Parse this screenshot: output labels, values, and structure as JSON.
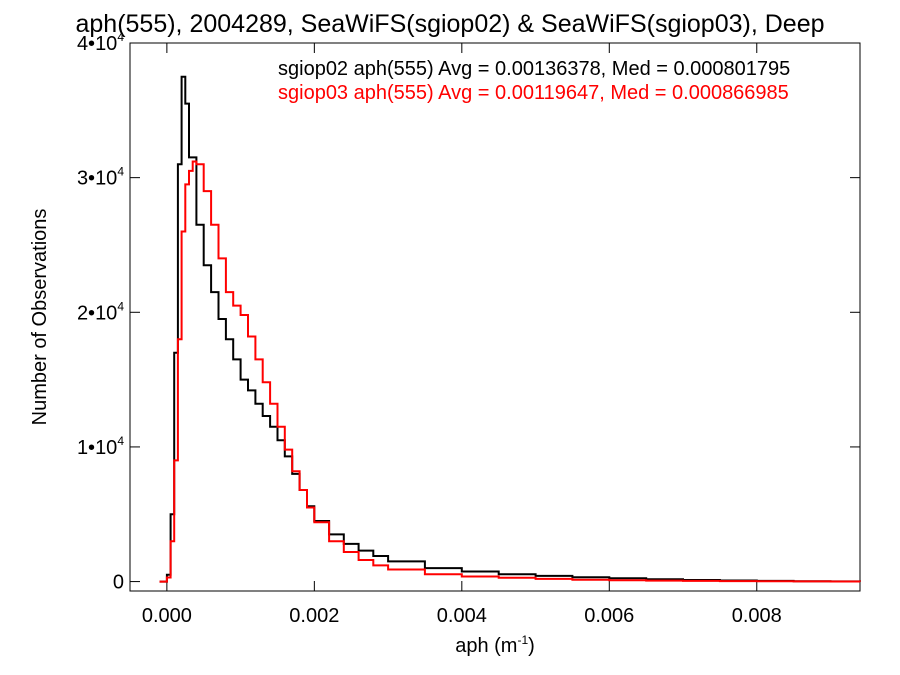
{
  "chart_data": {
    "type": "line",
    "title": "aph(555), 2004289, SeaWiFS(sgiop02) & SeaWiFS(sgiop03), Deep",
    "xlabel": "aph (m",
    "xlabel_sup": "-1",
    "xlabel_end": ")",
    "ylabel": "Number of Observations",
    "xlim": [
      -0.0005,
      0.0094
    ],
    "ylim": [
      -700,
      40000
    ],
    "xticks": [
      {
        "value": 0.0,
        "label": "0.000"
      },
      {
        "value": 0.002,
        "label": "0.002"
      },
      {
        "value": 0.004,
        "label": "0.004"
      },
      {
        "value": 0.006,
        "label": "0.006"
      },
      {
        "value": 0.008,
        "label": "0.008"
      }
    ],
    "yticks": [
      {
        "value": 0,
        "base": "0",
        "exp": ""
      },
      {
        "value": 10000,
        "base": "1•10",
        "exp": "4"
      },
      {
        "value": 20000,
        "base": "2•10",
        "exp": "4"
      },
      {
        "value": 30000,
        "base": "3•10",
        "exp": "4"
      },
      {
        "value": 40000,
        "base": "4•10",
        "exp": "4"
      }
    ],
    "grid": false,
    "legend_placement": "top-right",
    "series": [
      {
        "name": "sgiop02",
        "color": "#000000",
        "legend": "sgiop02 aph(555) Avg = 0.00136378, Med = 0.000801795",
        "x": [
          -0.0001,
          0.0,
          5e-05,
          0.0001,
          0.00015,
          0.0002,
          0.00025,
          0.0003,
          0.0004,
          0.0005,
          0.0006,
          0.0007,
          0.0008,
          0.0009,
          0.001,
          0.0011,
          0.0012,
          0.0013,
          0.0014,
          0.0015,
          0.0016,
          0.0017,
          0.0018,
          0.0019,
          0.002,
          0.0022,
          0.0024,
          0.0026,
          0.0028,
          0.003,
          0.0035,
          0.004,
          0.0045,
          0.005,
          0.0055,
          0.006,
          0.0065,
          0.007,
          0.0075,
          0.008,
          0.0085,
          0.009,
          0.0094
        ],
        "y": [
          0,
          500,
          5000,
          17000,
          31000,
          37500,
          35500,
          31500,
          26500,
          23500,
          21500,
          19500,
          18000,
          16500,
          15000,
          14200,
          13200,
          12300,
          11500,
          10500,
          9300,
          8000,
          6800,
          5600,
          4500,
          3500,
          2800,
          2300,
          1900,
          1500,
          1000,
          750,
          550,
          420,
          320,
          240,
          170,
          120,
          80,
          50,
          30,
          15,
          0
        ]
      },
      {
        "name": "sgiop03",
        "color": "#ff0000",
        "legend": "sgiop03 aph(555) Avg = 0.00119647, Med = 0.000866985",
        "x": [
          -0.0001,
          0.0,
          5e-05,
          0.0001,
          0.00015,
          0.0002,
          0.00025,
          0.0003,
          0.00035,
          0.0004,
          0.0005,
          0.0006,
          0.0007,
          0.0008,
          0.0009,
          0.001,
          0.0011,
          0.0012,
          0.0013,
          0.0014,
          0.0015,
          0.0016,
          0.0017,
          0.0018,
          0.0019,
          0.002,
          0.0022,
          0.0024,
          0.0026,
          0.0028,
          0.003,
          0.0035,
          0.004,
          0.0045,
          0.005,
          0.0055,
          0.006,
          0.0065,
          0.007,
          0.0075,
          0.008,
          0.0085,
          0.009,
          0.0094
        ],
        "y": [
          0,
          300,
          3000,
          9000,
          18000,
          26000,
          29500,
          30500,
          31200,
          31000,
          29000,
          26500,
          24000,
          21500,
          20500,
          19800,
          18200,
          16500,
          14800,
          13200,
          11500,
          9800,
          8200,
          6800,
          5500,
          4400,
          3000,
          2200,
          1600,
          1200,
          900,
          550,
          380,
          280,
          200,
          140,
          100,
          70,
          50,
          35,
          20,
          10,
          5,
          0
        ]
      }
    ]
  }
}
